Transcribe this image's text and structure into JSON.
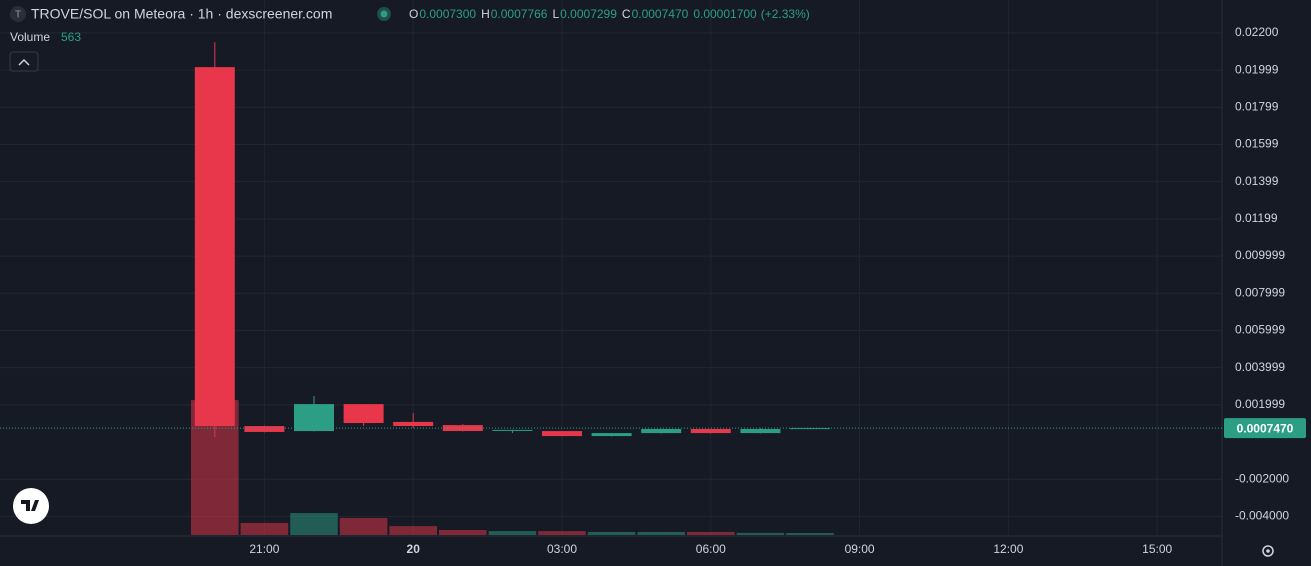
{
  "chart_data": {
    "type": "candlestick",
    "title": "TROVE/SOL on Meteora · 1h · dexscreener.com",
    "logo_letter": "T",
    "ohlc_legend": [
      {
        "key": "O",
        "label": "0.0007300"
      },
      {
        "key": "H",
        "label": "0.0007766"
      },
      {
        "key": "L",
        "label": "0.0007299"
      },
      {
        "key": "C",
        "label": "0.0007470"
      }
    ],
    "change": "0.00001700",
    "change_pct": "(+2.33%)",
    "volume_title": "Volume",
    "volume_label": "563",
    "categories": [
      null,
      "21:00",
      null,
      null,
      "20",
      null,
      null,
      "03:00",
      null,
      null,
      "06:00",
      null,
      null,
      "09:00",
      null,
      null,
      "12:00",
      null,
      null,
      "15:00",
      null
    ],
    "open": [
      0.02016,
      0.00086,
      0.00059,
      0.00204,
      0.00108,
      0.00091,
      0.00062,
      0.00059,
      0.00032,
      0.00048,
      0.0007,
      0.00048,
      0.00073,
      null,
      null,
      null,
      null,
      null,
      null,
      null,
      null
    ],
    "high": [
      0.0215,
      0.00088,
      0.00247,
      0.00204,
      0.00156,
      0.00096,
      0.00066,
      0.00059,
      0.00049,
      0.00072,
      0.00071,
      0.00075,
      0.0007766,
      null,
      null,
      null,
      null,
      null,
      null,
      null,
      null
    ],
    "low": [
      0.00027,
      0.00052,
      0.00057,
      0.00086,
      0.00075,
      0.00057,
      0.00048,
      0.00031,
      0.0003,
      0.00046,
      0.00046,
      0.00046,
      0.0007299,
      null,
      null,
      null,
      null,
      null,
      null,
      null,
      null
    ],
    "close": [
      0.00086,
      0.00054,
      0.00204,
      0.00102,
      0.00086,
      0.00059,
      0.00065,
      0.00032,
      0.00048,
      0.0007,
      0.00048,
      0.0007,
      0.000747,
      null,
      null,
      null,
      null,
      null,
      null,
      null,
      null
    ],
    "volume": [
      38000,
      3400,
      6200,
      4800,
      2500,
      1400,
      1100,
      1100,
      850,
      850,
      850,
      600,
      563,
      null,
      null,
      null,
      null,
      null,
      null,
      null,
      null
    ],
    "last_price_label": "0.0007470",
    "up_color": "#2c9e86",
    "down_color": "#e8364a",
    "ylim": [
      -0.005,
      0.02377
    ],
    "volume_lim": [
      0,
      38300
    ],
    "yticks": [
      {
        "value": 0.022,
        "label": "0.02200"
      },
      {
        "value": 0.02,
        "label": "0.01999"
      },
      {
        "value": 0.018,
        "label": "0.01799"
      },
      {
        "value": 0.016,
        "label": "0.01599"
      },
      {
        "value": 0.014,
        "label": "0.01399"
      },
      {
        "value": 0.012,
        "label": "0.01199"
      },
      {
        "value": 0.01,
        "label": "0.009999"
      },
      {
        "value": 0.008,
        "label": "0.007999"
      },
      {
        "value": 0.006,
        "label": "0.005999"
      },
      {
        "value": 0.004,
        "label": "0.003999"
      },
      {
        "value": 0.002,
        "label": "0.001999"
      },
      {
        "value": -0.002,
        "label": "-0.002000"
      },
      {
        "value": -0.004,
        "label": "-0.004000"
      }
    ],
    "grid": true
  }
}
